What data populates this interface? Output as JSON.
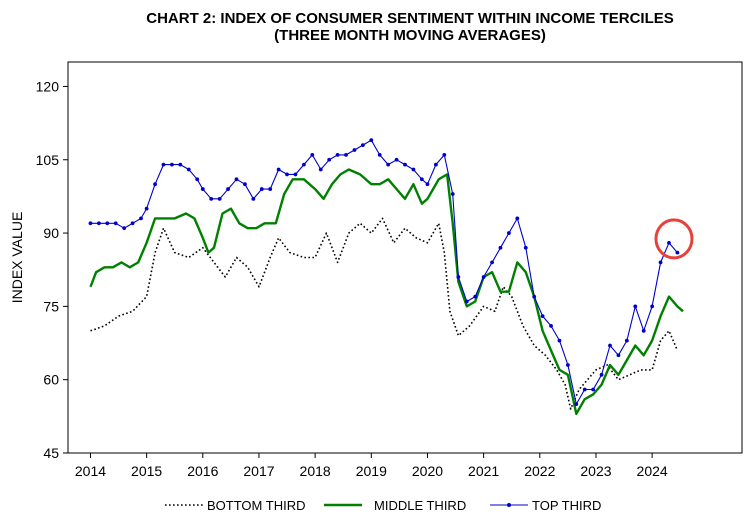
{
  "chart_data": {
    "type": "line",
    "title": [
      "CHART 2: INDEX OF CONSUMER SENTIMENT WITHIN INCOME TERCILES",
      "(THREE MONTH MOVING AVERAGES)"
    ],
    "ylabel": "INDEX VALUE",
    "xlabel": "",
    "ylim": [
      45,
      125
    ],
    "yticks": [
      45,
      60,
      75,
      90,
      105,
      120
    ],
    "xlim": [
      2013.6,
      2025.6
    ],
    "xticks": [
      2014,
      2015,
      2016,
      2017,
      2018,
      2019,
      2020,
      2021,
      2022,
      2023,
      2024
    ],
    "legend_position": "bottom",
    "grid": false,
    "annotation": "red circle highlighting latest TOP THIRD value",
    "series": [
      {
        "name": "BOTTOM THIRD",
        "style": "dotted",
        "color": "#000000",
        "points": [
          [
            2014.0,
            70
          ],
          [
            2014.25,
            71
          ],
          [
            2014.5,
            73
          ],
          [
            2014.75,
            74
          ],
          [
            2015.0,
            77
          ],
          [
            2015.15,
            86
          ],
          [
            2015.3,
            91
          ],
          [
            2015.5,
            86
          ],
          [
            2015.75,
            85
          ],
          [
            2016.0,
            87
          ],
          [
            2016.2,
            84
          ],
          [
            2016.4,
            81
          ],
          [
            2016.6,
            85
          ],
          [
            2016.8,
            83
          ],
          [
            2017.0,
            79
          ],
          [
            2017.2,
            85
          ],
          [
            2017.35,
            89
          ],
          [
            2017.55,
            86
          ],
          [
            2017.8,
            85
          ],
          [
            2018.0,
            85
          ],
          [
            2018.2,
            90
          ],
          [
            2018.4,
            84
          ],
          [
            2018.6,
            90
          ],
          [
            2018.8,
            92
          ],
          [
            2019.0,
            90
          ],
          [
            2019.2,
            93
          ],
          [
            2019.4,
            88
          ],
          [
            2019.6,
            91
          ],
          [
            2019.8,
            89
          ],
          [
            2020.0,
            88
          ],
          [
            2020.2,
            92
          ],
          [
            2020.3,
            86
          ],
          [
            2020.4,
            74
          ],
          [
            2020.55,
            69
          ],
          [
            2020.75,
            71
          ],
          [
            2021.0,
            75
          ],
          [
            2021.2,
            74
          ],
          [
            2021.35,
            79
          ],
          [
            2021.5,
            77
          ],
          [
            2021.7,
            71
          ],
          [
            2021.9,
            67
          ],
          [
            2022.1,
            65
          ],
          [
            2022.3,
            62
          ],
          [
            2022.45,
            59
          ],
          [
            2022.55,
            54
          ],
          [
            2022.7,
            58
          ],
          [
            2022.85,
            60
          ],
          [
            2023.0,
            62
          ],
          [
            2023.2,
            63
          ],
          [
            2023.4,
            60
          ],
          [
            2023.6,
            61
          ],
          [
            2023.8,
            62
          ],
          [
            2024.0,
            62
          ],
          [
            2024.15,
            68
          ],
          [
            2024.3,
            70
          ],
          [
            2024.45,
            66
          ]
        ]
      },
      {
        "name": "MIDDLE THIRD",
        "style": "solid",
        "color": "#008000",
        "points": [
          [
            2014.0,
            79
          ],
          [
            2014.1,
            82
          ],
          [
            2014.25,
            83
          ],
          [
            2014.4,
            83
          ],
          [
            2014.55,
            84
          ],
          [
            2014.7,
            83
          ],
          [
            2014.85,
            84
          ],
          [
            2015.0,
            88
          ],
          [
            2015.15,
            93
          ],
          [
            2015.3,
            93
          ],
          [
            2015.5,
            93
          ],
          [
            2015.7,
            94
          ],
          [
            2015.85,
            93
          ],
          [
            2016.0,
            89
          ],
          [
            2016.1,
            86
          ],
          [
            2016.2,
            87
          ],
          [
            2016.35,
            94
          ],
          [
            2016.5,
            95
          ],
          [
            2016.65,
            92
          ],
          [
            2016.8,
            91
          ],
          [
            2016.95,
            91
          ],
          [
            2017.1,
            92
          ],
          [
            2017.3,
            92
          ],
          [
            2017.45,
            98
          ],
          [
            2017.6,
            101
          ],
          [
            2017.8,
            101
          ],
          [
            2018.0,
            99
          ],
          [
            2018.15,
            97
          ],
          [
            2018.3,
            100
          ],
          [
            2018.45,
            102
          ],
          [
            2018.6,
            103
          ],
          [
            2018.8,
            102
          ],
          [
            2019.0,
            100
          ],
          [
            2019.15,
            100
          ],
          [
            2019.3,
            101
          ],
          [
            2019.45,
            99
          ],
          [
            2019.6,
            97
          ],
          [
            2019.75,
            100
          ],
          [
            2019.9,
            96
          ],
          [
            2020.0,
            97
          ],
          [
            2020.1,
            99
          ],
          [
            2020.2,
            101
          ],
          [
            2020.35,
            102
          ],
          [
            2020.45,
            92
          ],
          [
            2020.55,
            80
          ],
          [
            2020.7,
            75
          ],
          [
            2020.85,
            76
          ],
          [
            2021.0,
            81
          ],
          [
            2021.15,
            82
          ],
          [
            2021.3,
            78
          ],
          [
            2021.45,
            78
          ],
          [
            2021.6,
            84
          ],
          [
            2021.75,
            82
          ],
          [
            2021.9,
            77
          ],
          [
            2022.05,
            70
          ],
          [
            2022.2,
            66
          ],
          [
            2022.35,
            62
          ],
          [
            2022.5,
            61
          ],
          [
            2022.65,
            53
          ],
          [
            2022.8,
            56
          ],
          [
            2022.95,
            57
          ],
          [
            2023.1,
            59
          ],
          [
            2023.25,
            63
          ],
          [
            2023.4,
            61
          ],
          [
            2023.55,
            64
          ],
          [
            2023.7,
            67
          ],
          [
            2023.85,
            65
          ],
          [
            2024.0,
            68
          ],
          [
            2024.15,
            73
          ],
          [
            2024.3,
            77
          ],
          [
            2024.45,
            75
          ],
          [
            2024.55,
            74
          ]
        ]
      },
      {
        "name": "TOP THIRD",
        "style": "solid-dots",
        "color": "#0000cc",
        "points": [
          [
            2014.0,
            92
          ],
          [
            2014.15,
            92
          ],
          [
            2014.3,
            92
          ],
          [
            2014.45,
            92
          ],
          [
            2014.6,
            91
          ],
          [
            2014.75,
            92
          ],
          [
            2014.9,
            93
          ],
          [
            2015.0,
            95
          ],
          [
            2015.15,
            100
          ],
          [
            2015.3,
            104
          ],
          [
            2015.45,
            104
          ],
          [
            2015.6,
            104
          ],
          [
            2015.75,
            103
          ],
          [
            2015.9,
            101
          ],
          [
            2016.0,
            99
          ],
          [
            2016.15,
            97
          ],
          [
            2016.3,
            97
          ],
          [
            2016.45,
            99
          ],
          [
            2016.6,
            101
          ],
          [
            2016.75,
            100
          ],
          [
            2016.9,
            97
          ],
          [
            2017.05,
            99
          ],
          [
            2017.2,
            99
          ],
          [
            2017.35,
            103
          ],
          [
            2017.5,
            102
          ],
          [
            2017.65,
            102
          ],
          [
            2017.8,
            104
          ],
          [
            2017.95,
            106
          ],
          [
            2018.1,
            103
          ],
          [
            2018.25,
            105
          ],
          [
            2018.4,
            106
          ],
          [
            2018.55,
            106
          ],
          [
            2018.7,
            107
          ],
          [
            2018.85,
            108
          ],
          [
            2019.0,
            109
          ],
          [
            2019.15,
            106
          ],
          [
            2019.3,
            104
          ],
          [
            2019.45,
            105
          ],
          [
            2019.6,
            104
          ],
          [
            2019.75,
            103
          ],
          [
            2019.9,
            101
          ],
          [
            2020.0,
            100
          ],
          [
            2020.15,
            104
          ],
          [
            2020.3,
            106
          ],
          [
            2020.45,
            98
          ],
          [
            2020.55,
            81
          ],
          [
            2020.7,
            76
          ],
          [
            2020.85,
            77
          ],
          [
            2021.0,
            81
          ],
          [
            2021.15,
            84
          ],
          [
            2021.3,
            87
          ],
          [
            2021.45,
            90
          ],
          [
            2021.6,
            93
          ],
          [
            2021.75,
            87
          ],
          [
            2021.9,
            77
          ],
          [
            2022.05,
            73
          ],
          [
            2022.2,
            71
          ],
          [
            2022.35,
            68
          ],
          [
            2022.5,
            63
          ],
          [
            2022.65,
            55
          ],
          [
            2022.8,
            58
          ],
          [
            2022.95,
            58
          ],
          [
            2023.1,
            61
          ],
          [
            2023.25,
            67
          ],
          [
            2023.4,
            65
          ],
          [
            2023.55,
            68
          ],
          [
            2023.7,
            75
          ],
          [
            2023.85,
            70
          ],
          [
            2024.0,
            75
          ],
          [
            2024.15,
            84
          ],
          [
            2024.3,
            88
          ],
          [
            2024.45,
            86
          ]
        ]
      }
    ]
  }
}
